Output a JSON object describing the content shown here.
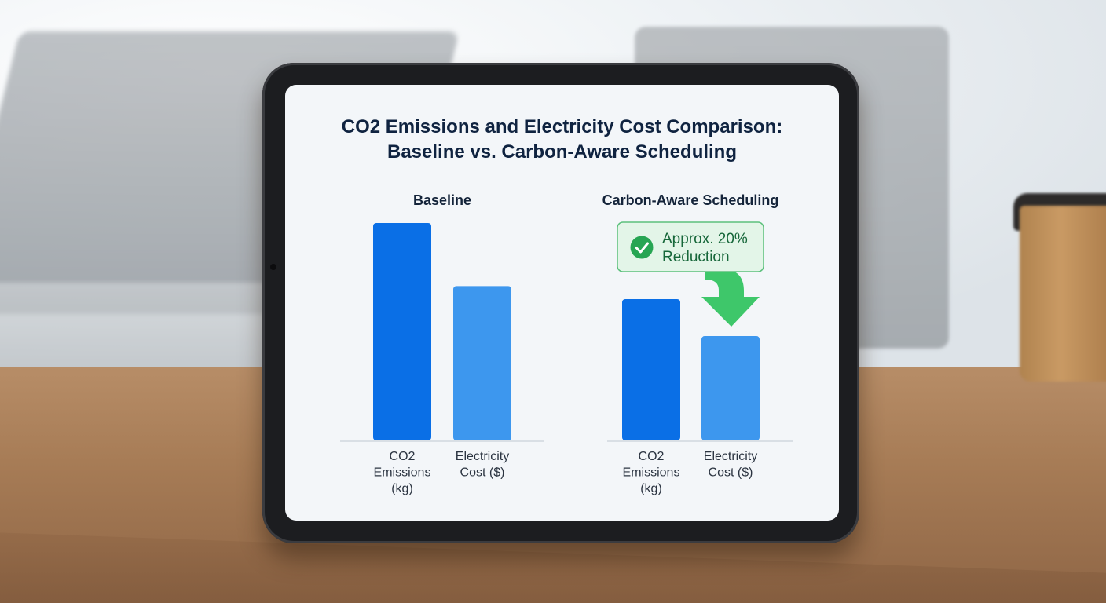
{
  "chart_data": {
    "type": "bar",
    "title_line1": "CO2 Emissions and Electricity Cost Comparison:",
    "title_line2": "Baseline vs. Carbon-Aware Scheduling",
    "ylim": [
      0,
      100
    ],
    "groups": [
      {
        "name": "Baseline",
        "categories": [
          "CO2 Emissions (kg)",
          "Electricity Cost ($)"
        ],
        "category_lines": [
          [
            "CO2",
            "Emissions",
            "(kg)"
          ],
          [
            "Electricity",
            "Cost ($)"
          ]
        ],
        "values": [
          100,
          71
        ]
      },
      {
        "name": "Carbon-Aware Scheduling",
        "categories": [
          "CO2 Emissions (kg)",
          "Electricity Cost ($)"
        ],
        "category_lines": [
          [
            "CO2",
            "Emissions",
            "(kg)"
          ],
          [
            "Electricity",
            "Cost ($)"
          ]
        ],
        "values": [
          65,
          48
        ]
      }
    ],
    "annotation": {
      "line1": "Approx. 20%",
      "line2": "Reduction",
      "icon": "check-circle-icon"
    },
    "colors": {
      "co2": "#0a6fe6",
      "cost": "#3d97ee",
      "annotation_bg": "#e3f5e8",
      "annotation_border": "#5cc07c",
      "annotation_text": "#17673a",
      "arrow": "#3ec76a"
    }
  }
}
